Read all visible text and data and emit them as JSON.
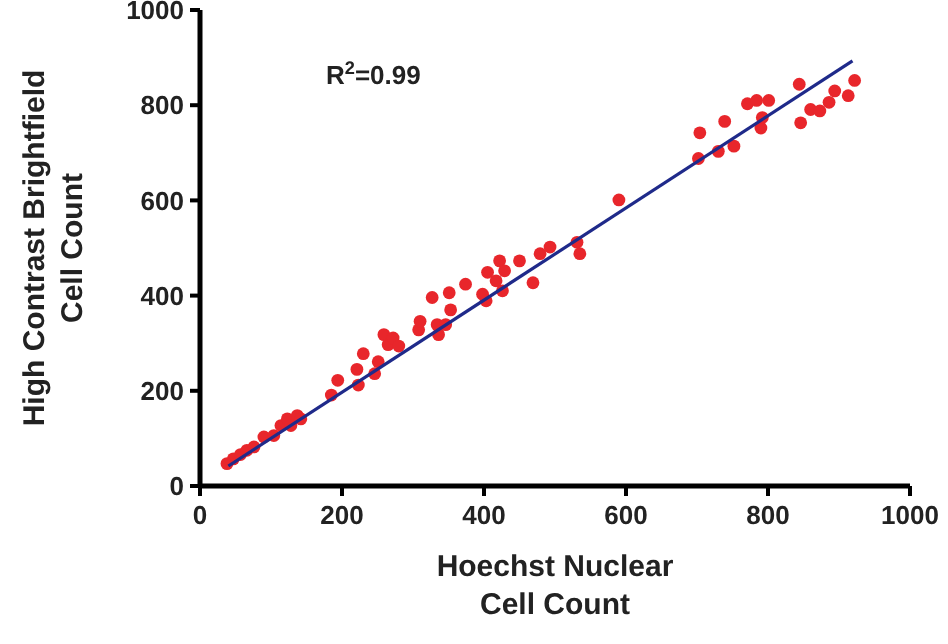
{
  "chart_data": {
    "type": "scatter",
    "xlabel": "Hoechst Nuclear\nCell Count",
    "ylabel": "High Contrast Brightfield\nCell Count",
    "annotations": [
      "R$^{2}$=0.99"
    ],
    "xlim": [
      0,
      1000
    ],
    "ylim": [
      0,
      1000
    ],
    "xticks": [
      0,
      200,
      400,
      600,
      800,
      1000
    ],
    "yticks": [
      0,
      200,
      400,
      600,
      800,
      1000
    ],
    "grid": false,
    "marker": "circle",
    "series": [
      {
        "color": "#e8262b",
        "x": [
          38,
          47,
          57,
          66,
          76,
          90,
          104,
          114,
          123,
          137,
          128,
          142,
          185,
          194,
          221,
          223,
          230,
          246,
          251,
          259,
          265,
          272,
          280,
          308,
          310,
          327,
          334,
          336,
          346,
          351,
          353,
          374,
          398,
          403,
          405,
          417,
          422,
          426,
          429,
          450,
          469,
          479,
          493,
          531,
          535,
          590,
          702,
          704,
          730,
          739,
          752,
          771,
          784,
          790,
          792,
          801,
          844,
          846,
          860,
          873,
          886,
          894,
          913,
          922
        ],
        "values": [
          47,
          57,
          66,
          75,
          82,
          103,
          106,
          127,
          141,
          148,
          127,
          141,
          191,
          222,
          245,
          212,
          278,
          236,
          261,
          318,
          297,
          311,
          294,
          328,
          346,
          396,
          339,
          318,
          339,
          406,
          370,
          424,
          403,
          389,
          449,
          431,
          473,
          410,
          452,
          473,
          427,
          488,
          502,
          512,
          488,
          601,
          688,
          742,
          703,
          766,
          714,
          803,
          810,
          752,
          774,
          810,
          844,
          763,
          791,
          788,
          806,
          830,
          820,
          852
        ]
      },
      {
        "type": "line",
        "color": "#1f2a8a",
        "x": [
          40,
          919
        ],
        "values": [
          42,
          893
        ],
        "marker": "none"
      }
    ]
  }
}
